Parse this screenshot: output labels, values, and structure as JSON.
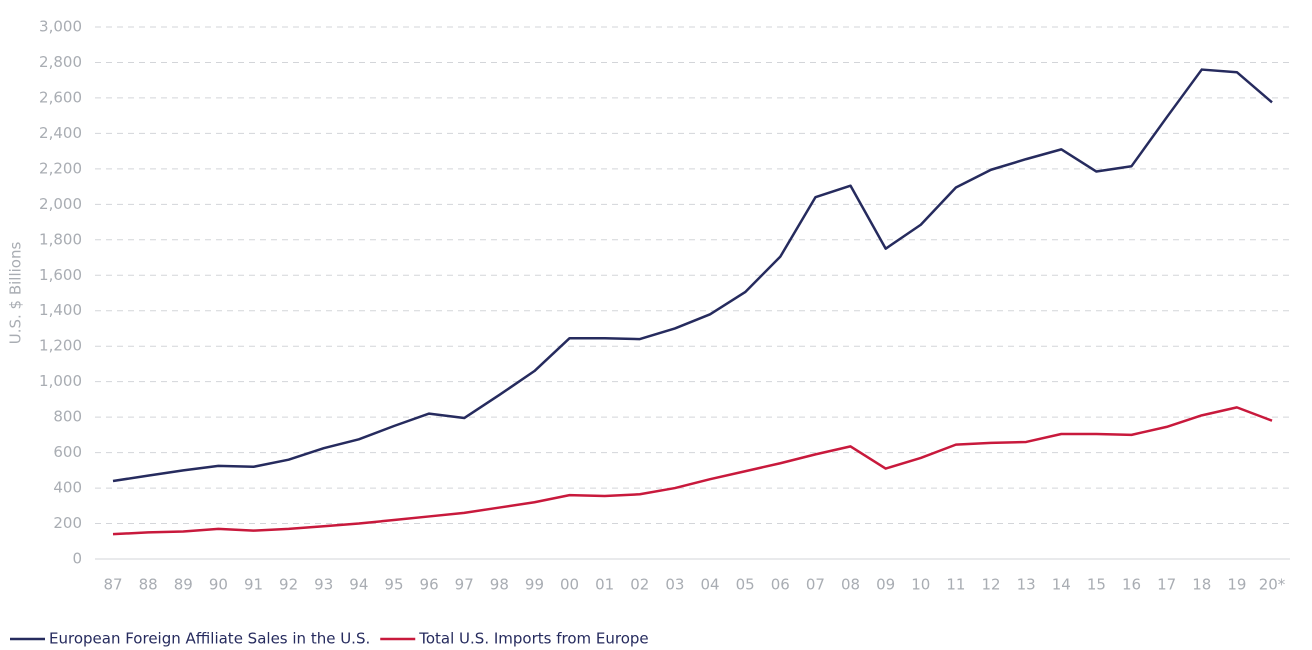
{
  "chart_data": {
    "type": "line",
    "y_label": "U.S. $ Billions",
    "categories": [
      "87",
      "88",
      "89",
      "90",
      "91",
      "92",
      "93",
      "94",
      "95",
      "96",
      "97",
      "98",
      "99",
      "00",
      "01",
      "02",
      "03",
      "04",
      "05",
      "06",
      "07",
      "08",
      "09",
      "10",
      "11",
      "12",
      "13",
      "14",
      "15",
      "16",
      "17",
      "18",
      "19",
      "20*"
    ],
    "series": [
      {
        "name": "European Foreign Affiliate Sales in the U.S.",
        "color": "#262b5e",
        "values": [
          440,
          470,
          500,
          525,
          520,
          560,
          625,
          675,
          750,
          820,
          795,
          925,
          1060,
          1245,
          1245,
          1240,
          1300,
          1380,
          1505,
          1705,
          2040,
          2105,
          1750,
          1885,
          2095,
          2195,
          2255,
          2310,
          2185,
          2215,
          2490,
          2760,
          2745,
          2575
        ]
      },
      {
        "name": "Total U.S. Imports from Europe",
        "color": "#c8193c",
        "values": [
          140,
          150,
          155,
          170,
          160,
          170,
          185,
          200,
          220,
          240,
          260,
          290,
          320,
          360,
          355,
          365,
          400,
          450,
          495,
          540,
          590,
          635,
          510,
          570,
          645,
          655,
          660,
          705,
          705,
          700,
          745,
          810,
          855,
          780
        ]
      }
    ],
    "ylim": [
      0,
      3000
    ],
    "yticks": [
      0,
      200,
      400,
      600,
      800,
      {
        "value": 1000,
        "label": "1,000"
      },
      {
        "value": 1200,
        "label": "1,200"
      },
      {
        "value": 1400,
        "label": "1,400"
      },
      {
        "value": 1600,
        "label": "1,600"
      },
      {
        "value": 1800,
        "label": "1,800"
      },
      {
        "value": 2000,
        "label": "2,000"
      },
      {
        "value": 2200,
        "label": "2,200"
      },
      {
        "value": 2400,
        "label": "2,400"
      },
      {
        "value": 2600,
        "label": "2,600"
      },
      {
        "value": 2800,
        "label": "2,800"
      },
      {
        "value": 3000,
        "label": "3,000"
      }
    ],
    "grid": true,
    "legend": "bottom-left"
  }
}
